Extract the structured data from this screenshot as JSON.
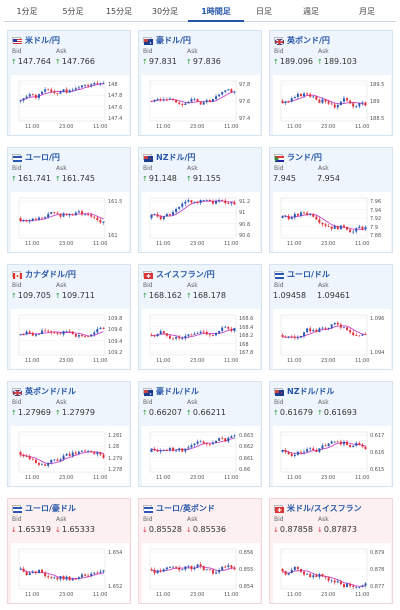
{
  "tabs": [
    {
      "label": "1分足",
      "width": 46
    },
    {
      "label": "5分足",
      "width": 46
    },
    {
      "label": "15分足",
      "width": 46
    },
    {
      "label": "30分足",
      "width": 46
    },
    {
      "label": "1時間足",
      "width": 56,
      "active": true
    },
    {
      "label": "日足",
      "width": 40
    },
    {
      "label": "週足",
      "width": 54
    },
    {
      "label": "月足",
      "width": 58
    }
  ],
  "labels": {
    "bid": "Bid",
    "ask": "Ask"
  },
  "colors": {
    "up_arrow": "#2e9d3a",
    "down_arrow": "#d6333d",
    "candle_up": "#2a5ab3",
    "candle_down": "#e0303a",
    "moving_average": "#cc44cc"
  },
  "cards": [
    {
      "pair": "米ドル/円",
      "flag": "us-flag",
      "bid": "147.764",
      "ask": "147.766",
      "dir": "up",
      "ticks": [
        "148",
        "147.8",
        "147.6",
        "147.4"
      ],
      "times": [
        "11:00",
        "23:00",
        "11:00"
      ],
      "seed": 1
    },
    {
      "pair": "豪ドル/円",
      "flag": "au-flag",
      "bid": "97.831",
      "ask": "97.836",
      "dir": "up",
      "ticks": [
        "97.8",
        "97.6",
        "97.4"
      ],
      "times": [
        "11:00",
        "23:00",
        "11:00"
      ],
      "seed": 2
    },
    {
      "pair": "英ポンド/円",
      "flag": "gb-flag",
      "bid": "189.096",
      "ask": "189.103",
      "dir": "up",
      "ticks": [
        "189.5",
        "189",
        "188.5"
      ],
      "times": [
        "11:00",
        "23:00",
        "11:00"
      ],
      "seed": 3
    },
    {
      "pair": "ユーロ/円",
      "flag": "eu-flag",
      "bid": "161.741",
      "ask": "161.745",
      "dir": "up",
      "ticks": [
        "161.5",
        "161"
      ],
      "times": [
        "11:00",
        "23:00",
        "11:00"
      ],
      "seed": 4
    },
    {
      "pair": "NZドル/円",
      "flag": "nz-flag",
      "bid": "91.148",
      "ask": "91.155",
      "dir": "up",
      "ticks": [
        "91.2",
        "91",
        "90.8",
        "90.6"
      ],
      "times": [
        "11:00",
        "23:00",
        "11:00"
      ],
      "seed": 5
    },
    {
      "pair": "ランド/円",
      "flag": "za-flag",
      "bid": "7.945",
      "ask": "7.954",
      "dir": "flat",
      "ticks": [
        "7.96",
        "7.94",
        "7.92",
        "7.9",
        "7.88"
      ],
      "times": [
        "11:00",
        "23:00",
        "11:00"
      ],
      "seed": 6
    },
    {
      "pair": "カナダドル/円",
      "flag": "ca-flag",
      "bid": "109.705",
      "ask": "109.711",
      "dir": "up",
      "ticks": [
        "109.8",
        "109.6",
        "109.4",
        "109.2"
      ],
      "times": [
        "11:00",
        "23:00",
        "11:00"
      ],
      "seed": 7
    },
    {
      "pair": "スイスフラン/円",
      "flag": "ch-flag",
      "bid": "168.162",
      "ask": "168.178",
      "dir": "up",
      "ticks": [
        "168.6",
        "168.4",
        "168.2",
        "168",
        "167.8"
      ],
      "times": [
        "11:00",
        "23:00",
        "11:00"
      ],
      "seed": 8
    },
    {
      "pair": "ユーロ/ドル",
      "flag": "eu-flag",
      "bid": "1.09458",
      "ask": "1.09461",
      "dir": "flat",
      "ticks": [
        "1.096",
        "1.094"
      ],
      "times": [
        "11:00",
        "23:00",
        "11:00"
      ],
      "seed": 9
    },
    {
      "pair": "英ポンド/ドル",
      "flag": "gb-flag",
      "bid": "1.27969",
      "ask": "1.27979",
      "dir": "up",
      "ticks": [
        "1.281",
        "1.28",
        "1.279",
        "1.278"
      ],
      "times": [
        "11:00",
        "23:00",
        "11:00"
      ],
      "seed": 10
    },
    {
      "pair": "豪ドル/ドル",
      "flag": "au-flag",
      "bid": "0.66207",
      "ask": "0.66211",
      "dir": "up",
      "ticks": [
        "0.663",
        "0.662",
        "0.661",
        "0.66"
      ],
      "times": [
        "11:00",
        "23:00",
        "11:00"
      ],
      "seed": 11
    },
    {
      "pair": "NZドル/ドル",
      "flag": "nz-flag",
      "bid": "0.61679",
      "ask": "0.61693",
      "dir": "up",
      "ticks": [
        "0.617",
        "0.616",
        "0.615"
      ],
      "times": [
        "11:00",
        "23:00",
        "11:00"
      ],
      "seed": 12
    },
    {
      "pair": "ユーロ/豪ドル",
      "flag": "eu-flag",
      "bid": "1.65319",
      "ask": "1.65333",
      "dir": "down",
      "ticks": [
        "1.654",
        "1.652"
      ],
      "times": [
        "11:00",
        "23:00",
        "11:00"
      ],
      "seed": 13
    },
    {
      "pair": "ユーロ/英ポンド",
      "flag": "eu-flag",
      "bid": "0.85528",
      "ask": "0.85536",
      "dir": "down",
      "ticks": [
        "0.856",
        "0.855",
        "0.854"
      ],
      "times": [
        "11:00",
        "23:00",
        "11:00"
      ],
      "seed": 14
    },
    {
      "pair": "米ドル/スイスフラン",
      "flag": "ch-flag",
      "bid": "0.87858",
      "ask": "0.87873",
      "dir": "down",
      "ticks": [
        "0.879",
        "0.878",
        "0.877"
      ],
      "times": [
        "11:00",
        "23:00",
        "11:00"
      ],
      "seed": 15
    }
  ]
}
